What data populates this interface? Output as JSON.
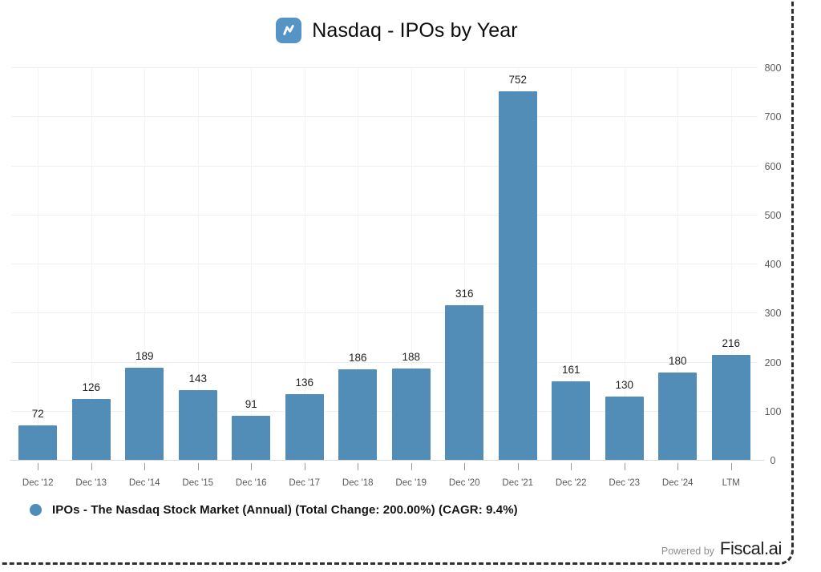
{
  "header": {
    "title": "Nasdaq - IPOs by Year"
  },
  "chart_data": {
    "type": "bar",
    "title": "Nasdaq - IPOs by Year",
    "categories": [
      "Dec '12",
      "Dec '13",
      "Dec '14",
      "Dec '15",
      "Dec '16",
      "Dec '17",
      "Dec '18",
      "Dec '19",
      "Dec '20",
      "Dec '21",
      "Dec '22",
      "Dec '23",
      "Dec '24",
      "LTM"
    ],
    "values": [
      72,
      126,
      189,
      143,
      91,
      136,
      186,
      188,
      316,
      752,
      161,
      130,
      180,
      216
    ],
    "series_name": "IPOs - The Nasdaq Stock Market (Annual)",
    "xlabel": "",
    "ylabel": "",
    "ylim": [
      0,
      800
    ],
    "y_ticks": [
      0,
      100,
      200,
      300,
      400,
      500,
      600,
      700,
      800
    ],
    "y_axis_side": "right",
    "grid": true,
    "value_labels": true,
    "bar_color": "#528DB8",
    "legend_position": "bottom-left"
  },
  "legend": {
    "label": "IPOs - The Nasdaq Stock Market (Annual) (Total Change: 200.00%) (CAGR: 9.4%)",
    "marker_color": "#4E8CBA"
  },
  "footer": {
    "powered_by": "Powered by",
    "brand": "Fiscal.ai"
  },
  "icons": {
    "logo": "trend-line-icon"
  },
  "colors": {
    "bar": "#528DB8",
    "logo_bg": "#5694C6",
    "axis_line": "#d9d9d9",
    "gridline": "#f0f0f0",
    "frame_dash": "#2e2e2e"
  }
}
